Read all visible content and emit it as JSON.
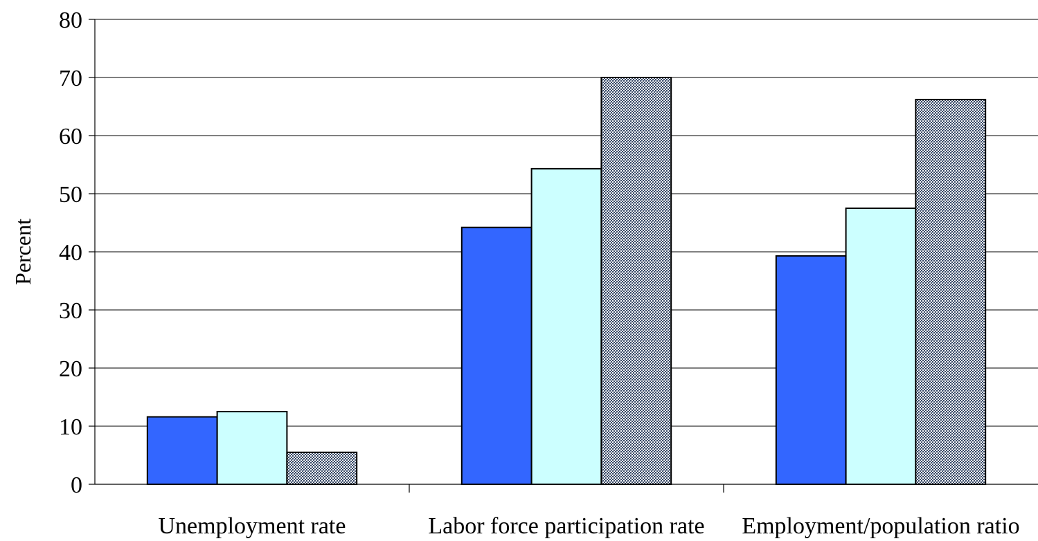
{
  "chart_data": {
    "type": "bar",
    "categories": [
      "Unemployment rate",
      "Labor force participation rate",
      "Employment/population ratio"
    ],
    "series": [
      {
        "values": [
          11.6,
          44.2,
          39.3
        ],
        "color": "#3366ff",
        "fill": "solid"
      },
      {
        "values": [
          12.5,
          54.3,
          47.5
        ],
        "color": "#ccffff",
        "fill": "solid"
      },
      {
        "values": [
          5.5,
          70.0,
          66.2
        ],
        "color": "#6f7f94",
        "fill": "dotted-pattern"
      }
    ],
    "title": "",
    "xlabel": "",
    "ylabel": "Percent",
    "ylim": [
      0,
      80
    ],
    "yticks": [
      0,
      10,
      20,
      30,
      40,
      50,
      60,
      70,
      80
    ],
    "grid": true,
    "legend": "none"
  }
}
